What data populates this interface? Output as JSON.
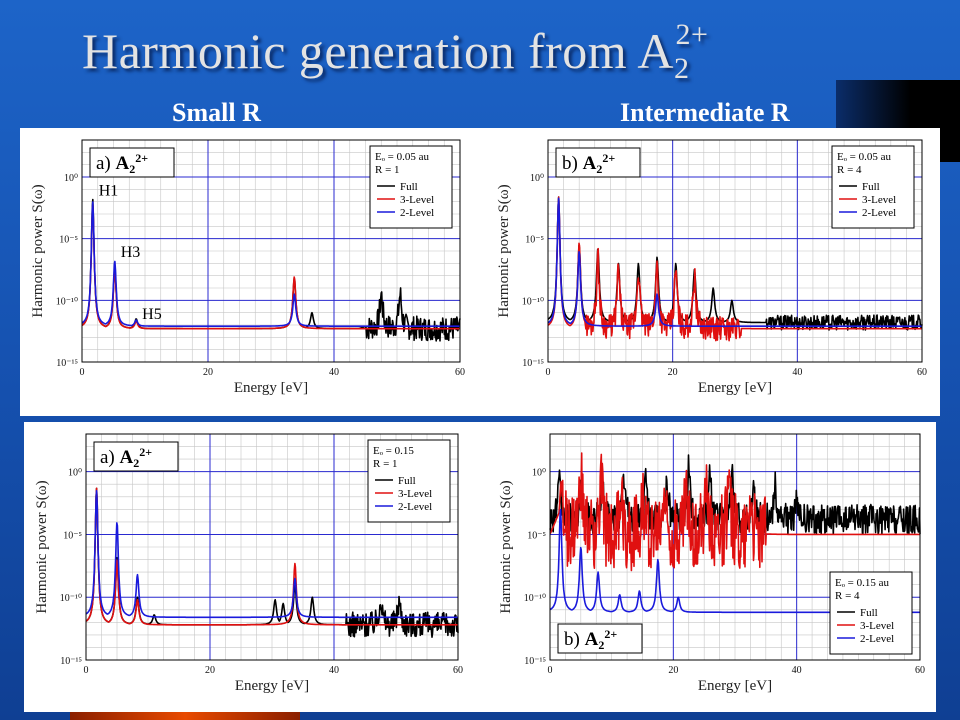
{
  "slide": {
    "title": "Harmonic generation from A",
    "title_sub": "2",
    "title_sup": "2+",
    "left_label": "Small R",
    "right_label": "Intermediate R"
  },
  "chart_data": [
    {
      "type": "line",
      "panel_label": "a)",
      "molecule": "A",
      "molecule_sub": "2",
      "molecule_sup": "2+",
      "xlabel": "Energy [eV]",
      "ylabel": "Harmonic power S(ω)",
      "xlim": [
        0,
        60
      ],
      "ylim_exp": [
        -15,
        3
      ],
      "yscale": "log",
      "x_ticks": [
        0,
        20,
        40,
        60
      ],
      "y_ticks": [
        "10⁰",
        "10⁻⁵",
        "10⁻¹⁰",
        "10⁻¹⁵"
      ],
      "legend_position": "top-right",
      "legend_params": [
        "Eₒ = 0.05 au",
        "R = 1"
      ],
      "annotations": [
        {
          "text": "H1",
          "x": 1.7,
          "y_exp": -1.5
        },
        {
          "text": "H3",
          "x": 5.2,
          "y_exp": -6.5
        },
        {
          "text": "H5",
          "x": 8.6,
          "y_exp": -11.5
        }
      ],
      "baseline": {
        "Full": -12.3,
        "3-Level": -12.3,
        "2-Level": -12.1
      },
      "start": {
        "Full": -14.2,
        "3-Level": -15,
        "2-Level": -14.5
      },
      "series": [
        {
          "name": "Full",
          "color": "#000000",
          "peaks": [
            [
              1.7,
              -1.8
            ],
            [
              5.2,
              -7.3
            ],
            [
              8.6,
              -11.5
            ],
            [
              33.7,
              -8.2
            ],
            [
              36.5,
              -11.0
            ],
            [
              47.5,
              -9.5
            ],
            [
              50.5,
              -9.5
            ],
            [
              44.5,
              -12.2
            ]
          ],
          "noise": {
            "from": 45,
            "to": 60,
            "amp": 1.0
          }
        },
        {
          "name": "3-Level",
          "color": "#e01010",
          "peaks": [
            [
              1.7,
              -2.2
            ],
            [
              5.2,
              -7.5
            ],
            [
              8.6,
              -11.7
            ],
            [
              33.7,
              -8.1
            ]
          ],
          "noise": null
        },
        {
          "name": "2-Level",
          "color": "#1a1adc",
          "peaks": [
            [
              1.7,
              -2.0
            ],
            [
              5.2,
              -6.8
            ],
            [
              8.6,
              -11.6
            ],
            [
              33.7,
              -9.5
            ]
          ],
          "noise": null
        }
      ]
    },
    {
      "type": "line",
      "panel_label": "b)",
      "molecule": "A",
      "molecule_sub": "2",
      "molecule_sup": "2+",
      "xlabel": "Energy [eV]",
      "ylabel": "Harmonic power S(ω)",
      "xlim": [
        0,
        60
      ],
      "ylim_exp": [
        -15,
        3
      ],
      "yscale": "log",
      "x_ticks": [
        0,
        20,
        40,
        60
      ],
      "y_ticks": [
        "10⁰",
        "10⁻⁵",
        "10⁻¹⁰",
        "10⁻¹⁵"
      ],
      "legend_position": "top-right",
      "legend_params": [
        "Eₒ = 0.05 au",
        "R = 4"
      ],
      "annotations": [],
      "baseline": {
        "Full": -11.8,
        "3-Level": -12.3,
        "2-Level": -12.1
      },
      "start": {
        "Full": -14.0,
        "3-Level": -14.5,
        "2-Level": -14.5
      },
      "series": [
        {
          "name": "Full",
          "color": "#000000",
          "peaks": [
            [
              1.7,
              -1.6
            ],
            [
              5.0,
              -5.5
            ],
            [
              8.0,
              -5.8
            ],
            [
              11.3,
              -7.0
            ],
            [
              14.5,
              -7.0
            ],
            [
              17.5,
              -6.5
            ],
            [
              20.5,
              -7.0
            ],
            [
              23.5,
              -7.5
            ],
            [
              26.5,
              -9.0
            ],
            [
              29.5,
              -10.0
            ]
          ],
          "noise": {
            "from": 35,
            "to": 60,
            "amp": 0.6
          }
        },
        {
          "name": "3-Level",
          "color": "#e01010",
          "peaks": [
            [
              1.7,
              -1.6
            ],
            [
              5.0,
              -5.3
            ],
            [
              8.0,
              -6.5
            ],
            [
              11.3,
              -7.5
            ],
            [
              14.5,
              -7.5
            ],
            [
              17.5,
              -7.0
            ],
            [
              20.5,
              -7.5
            ],
            [
              23.5,
              -8.0
            ]
          ],
          "noise": {
            "from": 6,
            "to": 31,
            "amp": 1.0
          }
        },
        {
          "name": "2-Level",
          "color": "#1a1adc",
          "peaks": [
            [
              1.7,
              -1.7
            ],
            [
              5.0,
              -6.0
            ],
            [
              17.5,
              -9.5
            ]
          ],
          "noise": null
        }
      ]
    },
    {
      "type": "line",
      "panel_label": "a)",
      "molecule": "A",
      "molecule_sub": "2",
      "molecule_sup": "2+",
      "xlabel": "Energy [eV]",
      "ylabel": "Harmonic power S(ω)",
      "xlim": [
        0,
        60
      ],
      "ylim_exp": [
        -15,
        3
      ],
      "yscale": "log",
      "x_ticks": [
        0,
        20,
        40,
        60
      ],
      "y_ticks": [
        "10⁰",
        "10⁻⁵",
        "10⁻¹⁰",
        "10⁻¹⁵"
      ],
      "legend_position": "top-right",
      "legend_params": [
        "Eₒ = 0.15",
        "R = 1"
      ],
      "annotations": [],
      "baseline": {
        "Full": -12.2,
        "3-Level": -12.2,
        "2-Level": -11.6
      },
      "start": {
        "Full": -14.5,
        "3-Level": -15,
        "2-Level": -14.8
      },
      "series": [
        {
          "name": "Full",
          "color": "#000000",
          "peaks": [
            [
              1.7,
              -1.3
            ],
            [
              5.0,
              -6.8
            ],
            [
              8.3,
              -10.0
            ],
            [
              11.0,
              -11.4
            ],
            [
              30.5,
              -10.2
            ],
            [
              31.8,
              -10.5
            ],
            [
              33.7,
              -9.0
            ],
            [
              36.5,
              -10.0
            ],
            [
              47.5,
              -10.0
            ],
            [
              50.5,
              -10.2
            ]
          ],
          "noise": {
            "from": 42,
            "to": 60,
            "amp": 1.0
          }
        },
        {
          "name": "3-Level",
          "color": "#e01010",
          "peaks": [
            [
              1.7,
              -1.3
            ],
            [
              5.0,
              -7.0
            ],
            [
              8.3,
              -10.2
            ],
            [
              33.7,
              -7.3
            ]
          ],
          "noise": null
        },
        {
          "name": "2-Level",
          "color": "#1a1adc",
          "peaks": [
            [
              1.7,
              -1.5
            ],
            [
              5.0,
              -4.0
            ],
            [
              8.3,
              -8.2
            ],
            [
              33.7,
              -8.5
            ]
          ],
          "noise": null
        }
      ]
    },
    {
      "type": "line",
      "panel_label": "b)",
      "molecule": "A",
      "molecule_sub": "2",
      "molecule_sup": "2+",
      "xlabel": "Energy [eV]",
      "ylabel": "Harmonic power S(ω)",
      "xlim": [
        0,
        60
      ],
      "ylim_exp": [
        -15,
        3
      ],
      "yscale": "log",
      "x_ticks": [
        0,
        20,
        40,
        60
      ],
      "y_ticks": [
        "10⁰",
        "10⁻⁵",
        "10⁻¹⁰",
        "10⁻¹⁵"
      ],
      "legend_position": "bottom-right",
      "legend_params": [
        "Eₒ = 0.15 au",
        "R = 4"
      ],
      "annotations": [],
      "baseline": {
        "Full": -3.8,
        "3-Level": -5.0,
        "2-Level": -11.2
      },
      "start": {
        "Full": -4.5,
        "3-Level": -5.0,
        "2-Level": -14.0
      },
      "series": [
        {
          "name": "Full",
          "color": "#000000",
          "peaks": [
            [
              1.5,
              -1.0
            ],
            [
              5.0,
              -1.5
            ],
            [
              8.5,
              -1.0
            ],
            [
              12.0,
              -0.5
            ],
            [
              15.5,
              -0.7
            ],
            [
              19.0,
              -0.8
            ],
            [
              22.5,
              0.3
            ],
            [
              26.0,
              0.3
            ],
            [
              29.5,
              0.0
            ],
            [
              33.0,
              -1.0
            ],
            [
              36.5,
              -1.2
            ],
            [
              40.0,
              -2.5
            ]
          ],
          "noise": {
            "from": 0,
            "to": 60,
            "amp": 1.2
          }
        },
        {
          "name": "3-Level",
          "color": "#e01010",
          "peaks": [
            [
              1.8,
              -0.8
            ],
            [
              5.0,
              -0.5
            ],
            [
              8.3,
              -1.0
            ],
            [
              11.5,
              -1.5
            ],
            [
              15.0,
              -1.5
            ],
            [
              18.5,
              -1.0
            ],
            [
              22.0,
              -1.5
            ],
            [
              25.5,
              -0.5
            ],
            [
              29.0,
              -1.0
            ],
            [
              32.5,
              -1.5
            ]
          ],
          "noise": {
            "from": 2,
            "to": 35,
            "amp": 3.0
          }
        },
        {
          "name": "2-Level",
          "color": "#1a1adc",
          "peaks": [
            [
              1.7,
              -3.0
            ],
            [
              5.0,
              -6.0
            ],
            [
              7.8,
              -8.0
            ],
            [
              11.3,
              -9.8
            ],
            [
              14.5,
              -9.5
            ],
            [
              17.5,
              -7.0
            ],
            [
              20.8,
              -10.0
            ]
          ],
          "noise": null
        }
      ]
    }
  ]
}
